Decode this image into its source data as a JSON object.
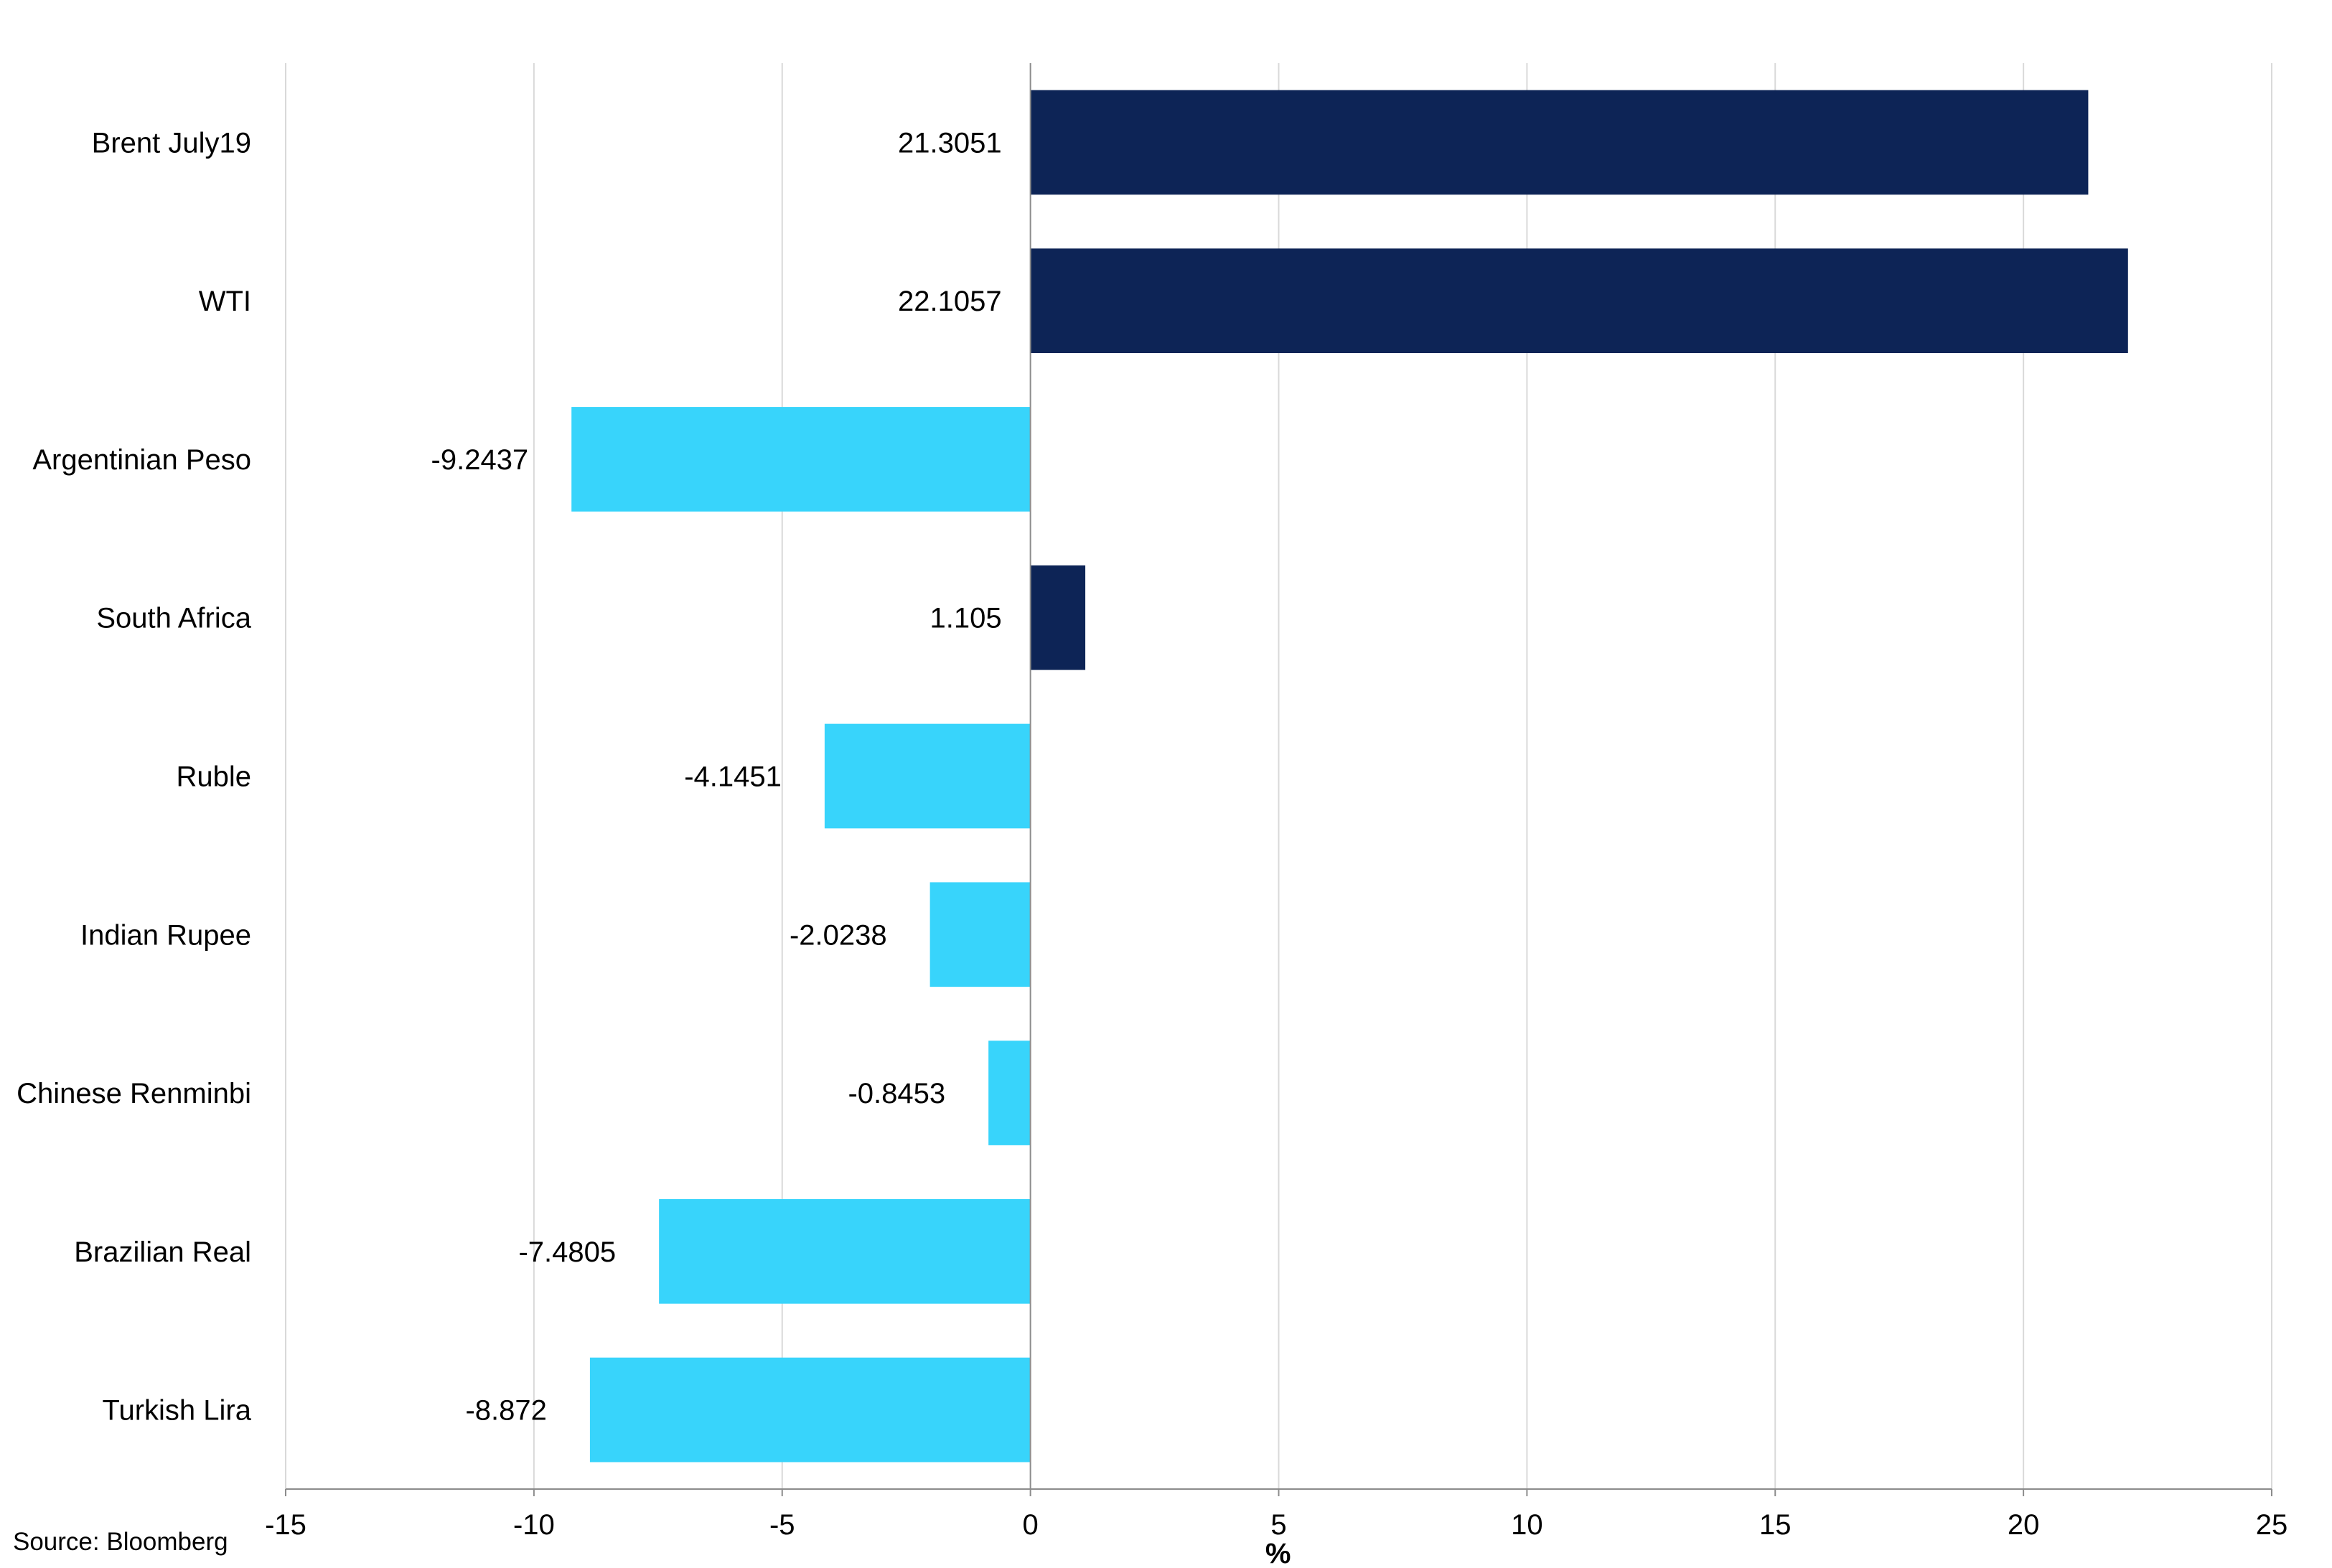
{
  "chart_data": {
    "type": "bar",
    "orientation": "horizontal",
    "categories": [
      "Brent July19",
      "WTI",
      "Argentinian Peso",
      "South Africa",
      "Ruble",
      "Indian Rupee",
      "Chinese Renminbi",
      "Brazilian Real",
      "Turkish Lira"
    ],
    "values": [
      21.3051,
      22.1057,
      -9.2437,
      1.105,
      -4.1451,
      -2.0238,
      -0.8453,
      -7.4805,
      -8.872
    ],
    "data_labels": [
      "21.3051",
      "22.1057",
      "-9.2437",
      "1.105",
      "-4.1451",
      "-2.0238",
      "-0.8453",
      "-7.4805",
      "-8.872"
    ],
    "bar_colors": [
      "#0d2456",
      "#0d2456",
      "#38d4fb",
      "#0d2456",
      "#38d4fb",
      "#38d4fb",
      "#38d4fb",
      "#38d4fb",
      "#38d4fb"
    ],
    "xlim": [
      -15,
      25
    ],
    "xticks": [
      -15,
      -10,
      -5,
      0,
      5,
      10,
      15,
      20,
      25
    ],
    "xtick_labels": [
      "-15",
      "-10",
      "-5",
      "0",
      "5",
      "10",
      "15",
      "20",
      "25"
    ],
    "xlabel": "%",
    "title": "",
    "grid": true,
    "source": "Source: Bloomberg"
  }
}
